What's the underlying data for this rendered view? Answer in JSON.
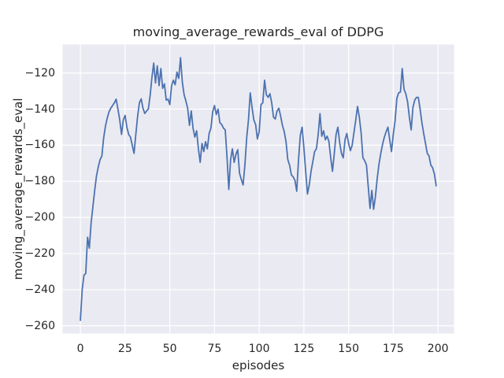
{
  "chart_data": {
    "type": "line",
    "title": "moving_average_rewards_eval of DDPG",
    "xlabel": "episodes",
    "ylabel": "moving_average_rewards_eval",
    "x_start": 0,
    "x_step": 1,
    "xlim": [
      -9.95,
      208.95
    ],
    "ylim": [
      -264.3,
      -104.2
    ],
    "x_ticks": [
      0,
      25,
      50,
      75,
      100,
      125,
      150,
      175,
      200
    ],
    "y_ticks": [
      -260,
      -240,
      -220,
      -200,
      -180,
      -160,
      -140,
      -120
    ],
    "x_tick_labels": [
      "0",
      "25",
      "50",
      "75",
      "100",
      "125",
      "150",
      "175",
      "200"
    ],
    "y_tick_labels": [
      "−260",
      "−240",
      "−220",
      "−200",
      "−180",
      "−160",
      "−140",
      "−120"
    ],
    "grid": true,
    "legend": null,
    "line_color": "#4C72B0",
    "plot_bg": "#EAEAF2",
    "grid_color": "#FFFFFF",
    "text_color": "#262626",
    "values": [
      -257,
      -240,
      -232,
      -231,
      -211,
      -217,
      -203,
      -194,
      -185,
      -177,
      -172,
      -168,
      -166,
      -156,
      -149.5,
      -145,
      -141.5,
      -139.5,
      -138,
      -136.5,
      -134.5,
      -140,
      -146,
      -154,
      -146,
      -143.5,
      -150,
      -154,
      -155.5,
      -160,
      -164.5,
      -154,
      -144,
      -136.5,
      -134.3,
      -139.5,
      -142.4,
      -141,
      -140,
      -132.5,
      -122.5,
      -114.5,
      -125.5,
      -116,
      -127,
      -117.5,
      -128.5,
      -126,
      -135,
      -134.5,
      -137.5,
      -127,
      -124,
      -126.5,
      -119.5,
      -123,
      -111.5,
      -125,
      -132,
      -135.5,
      -139.5,
      -149,
      -141,
      -150.5,
      -155.5,
      -152,
      -162,
      -169.5,
      -159,
      -163.5,
      -158,
      -162,
      -153.5,
      -150.5,
      -141.5,
      -138,
      -143,
      -140,
      -147.5,
      -148.5,
      -150.5,
      -151.5,
      -166.5,
      -184.5,
      -168,
      -162,
      -169.5,
      -165,
      -162.5,
      -175.5,
      -179,
      -182,
      -171,
      -156,
      -146,
      -131,
      -139,
      -146,
      -148.5,
      -156.5,
      -152.5,
      -137.5,
      -136.5,
      -124,
      -132,
      -133.5,
      -131.5,
      -136.5,
      -144.5,
      -145.5,
      -141,
      -139.5,
      -144,
      -149,
      -152.5,
      -158,
      -168,
      -171,
      -176.5,
      -177.5,
      -179.5,
      -185.5,
      -168,
      -154.5,
      -150,
      -161.5,
      -174.5,
      -187,
      -182,
      -174.5,
      -169,
      -163.5,
      -162,
      -154,
      -142.5,
      -155,
      -152,
      -157,
      -155,
      -158,
      -167,
      -174.5,
      -164.5,
      -154,
      -150,
      -158.5,
      -164.5,
      -167,
      -157,
      -153.5,
      -159,
      -163,
      -160,
      -153,
      -146,
      -138.5,
      -144.5,
      -153,
      -167,
      -168.5,
      -171,
      -183,
      -195,
      -185,
      -195.5,
      -188.5,
      -178.5,
      -170.5,
      -164.5,
      -159.5,
      -155.5,
      -152.5,
      -150,
      -157,
      -163.5,
      -154,
      -146.5,
      -134,
      -131,
      -130.5,
      -117.5,
      -129,
      -131.5,
      -136,
      -144.5,
      -151.5,
      -139,
      -135,
      -133.5,
      -133.5,
      -140,
      -147.5,
      -153.5,
      -159,
      -164.5,
      -166,
      -171,
      -172.5,
      -176,
      -182.5
    ]
  }
}
